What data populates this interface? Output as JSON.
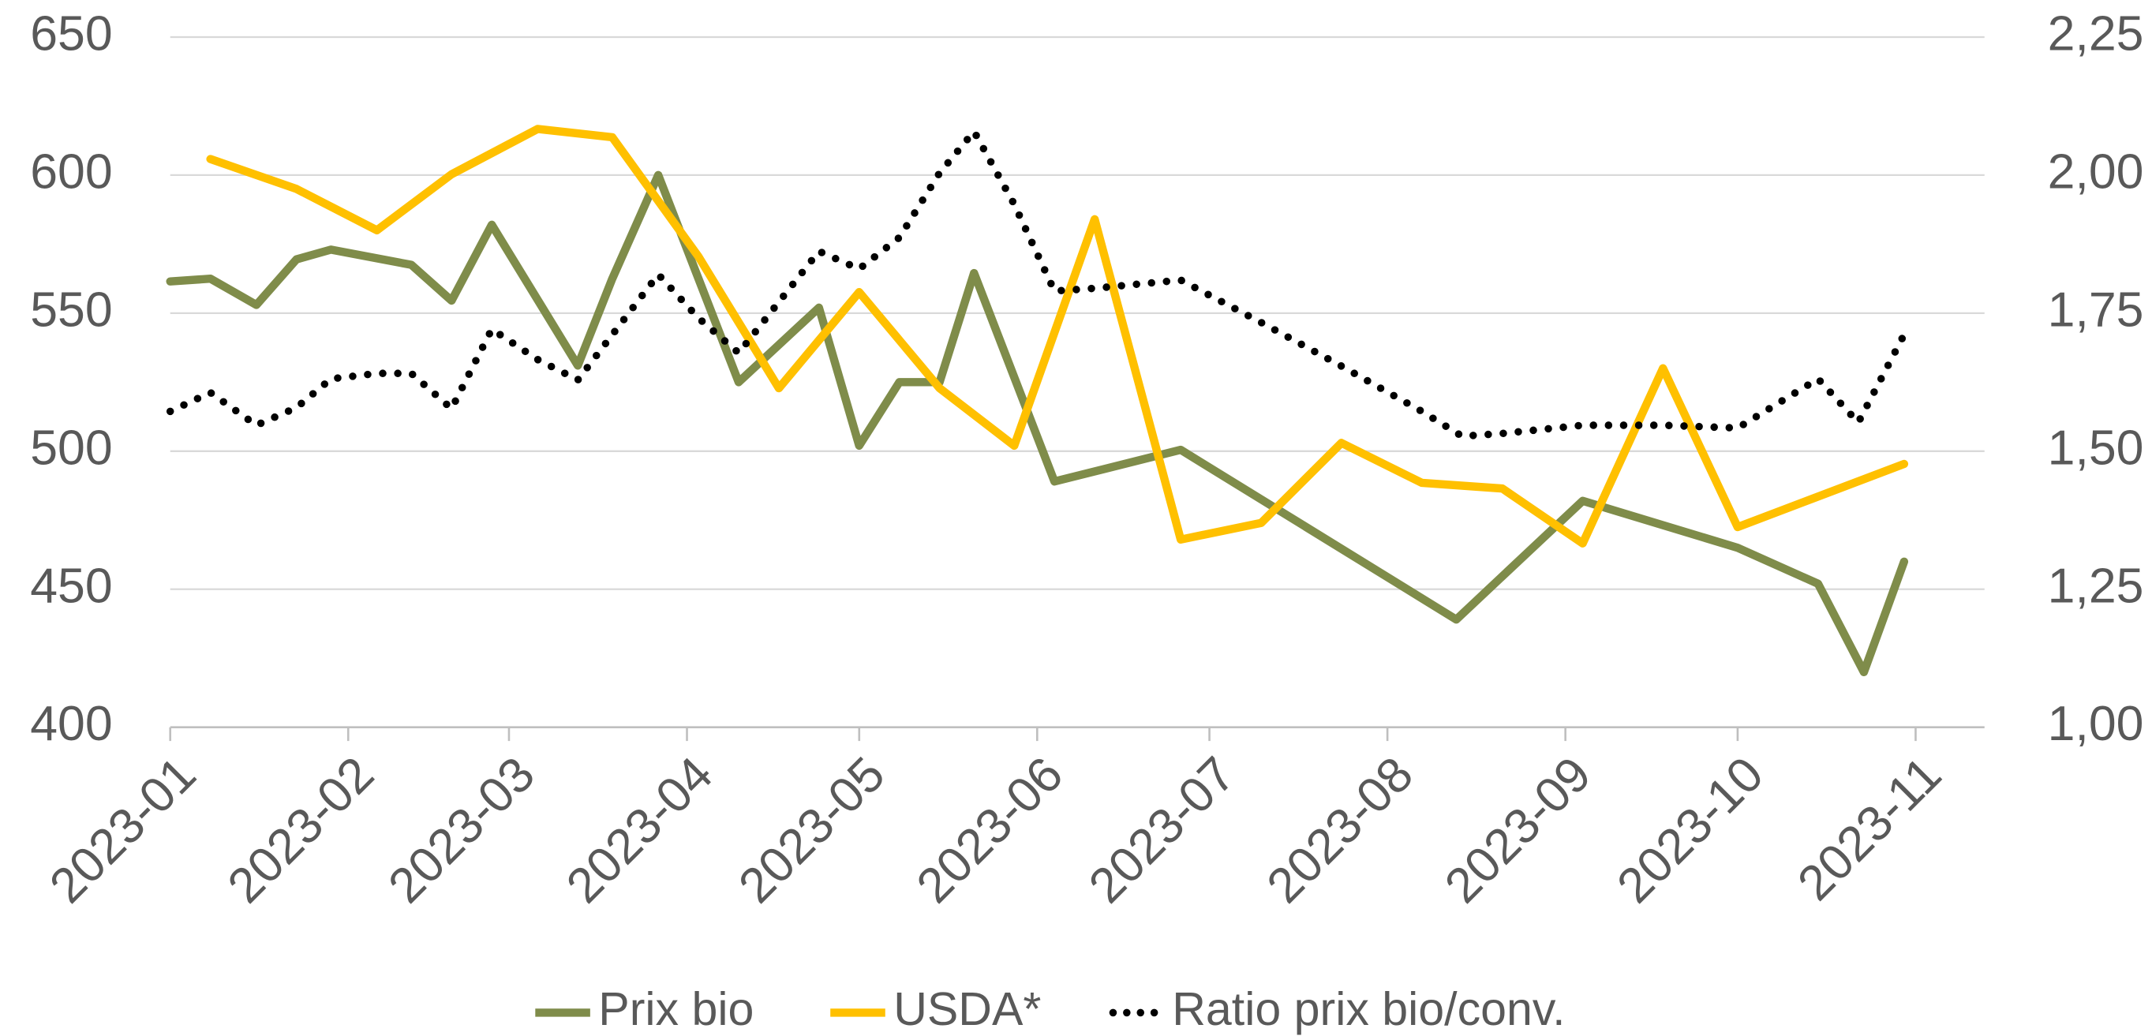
{
  "chart_data": {
    "type": "line",
    "xlim": [
      0,
      316
    ],
    "xticks": [
      {
        "value": 0,
        "label": "2023-01"
      },
      {
        "value": 31,
        "label": "2023-02"
      },
      {
        "value": 59,
        "label": "2023-03"
      },
      {
        "value": 90,
        "label": "2023-04"
      },
      {
        "value": 120,
        "label": "2023-05"
      },
      {
        "value": 151,
        "label": "2023-06"
      },
      {
        "value": 181,
        "label": "2023-07"
      },
      {
        "value": 212,
        "label": "2023-08"
      },
      {
        "value": 243,
        "label": "2023-09"
      },
      {
        "value": 273,
        "label": "2023-10"
      },
      {
        "value": 304,
        "label": "2023-11"
      }
    ],
    "ylim": [
      400,
      650
    ],
    "yticks": [
      400,
      450,
      500,
      550,
      600,
      650
    ],
    "y2lim": [
      1.0,
      2.25
    ],
    "y2ticks": [
      {
        "value": 1.0,
        "label": "1,00"
      },
      {
        "value": 1.25,
        "label": "1,25"
      },
      {
        "value": 1.5,
        "label": "1,50"
      },
      {
        "value": 1.75,
        "label": "1,75"
      },
      {
        "value": 2.0,
        "label": "2,00"
      },
      {
        "value": 2.25,
        "label": "2,25"
      }
    ],
    "grid": true,
    "legend": "bottom",
    "series": [
      {
        "name": "Prix bio",
        "color": "#7f8c4a",
        "style": "solid",
        "x": [
          0,
          7,
          15,
          22,
          28,
          42,
          49,
          56,
          71,
          77,
          85,
          99,
          113,
          120,
          127,
          134,
          140,
          154,
          176,
          224,
          246,
          273,
          287,
          295,
          302
        ],
        "values": [
          561.5,
          562.5,
          553,
          569.5,
          573,
          567.5,
          554.5,
          582,
          531,
          562.5,
          600,
          525,
          552,
          502,
          525,
          525,
          564.5,
          489,
          500.5,
          439,
          482,
          465,
          452,
          420,
          460
        ]
      },
      {
        "name": "USDA*",
        "color": "#ffc000",
        "style": "solid",
        "x": [
          7,
          22,
          36,
          49,
          64,
          77,
          92,
          106,
          120,
          134,
          147,
          161,
          176,
          190,
          204,
          218,
          232,
          246,
          260,
          273,
          302
        ],
        "values": [
          605.8,
          595,
          580,
          600.3,
          616.7,
          613.7,
          570.5,
          522.8,
          557.6,
          522.8,
          502,
          584,
          468,
          474,
          503,
          488.5,
          486.5,
          466.6,
          530,
          472.5,
          495.4
        ]
      },
      {
        "name": "Ratio prix bio/conv.",
        "color": "#000000",
        "style": "dotted",
        "axis": "y2",
        "x": [
          0,
          7,
          15,
          22,
          28,
          36,
          42,
          49,
          56,
          64,
          71,
          85,
          92,
          99,
          113,
          120,
          127,
          134,
          140,
          147,
          154,
          161,
          176,
          190,
          204,
          218,
          225,
          232,
          246,
          260,
          273,
          287,
          294,
          302
        ],
        "values": [
          1.572,
          1.606,
          1.547,
          1.579,
          1.631,
          1.641,
          1.641,
          1.577,
          1.721,
          1.666,
          1.629,
          1.82,
          1.741,
          1.678,
          1.862,
          1.83,
          1.887,
          2.004,
          2.079,
          1.947,
          1.79,
          1.795,
          1.81,
          1.733,
          1.654,
          1.572,
          1.527,
          1.532,
          1.547,
          1.547,
          1.542,
          1.631,
          1.552,
          1.711
        ]
      }
    ]
  }
}
